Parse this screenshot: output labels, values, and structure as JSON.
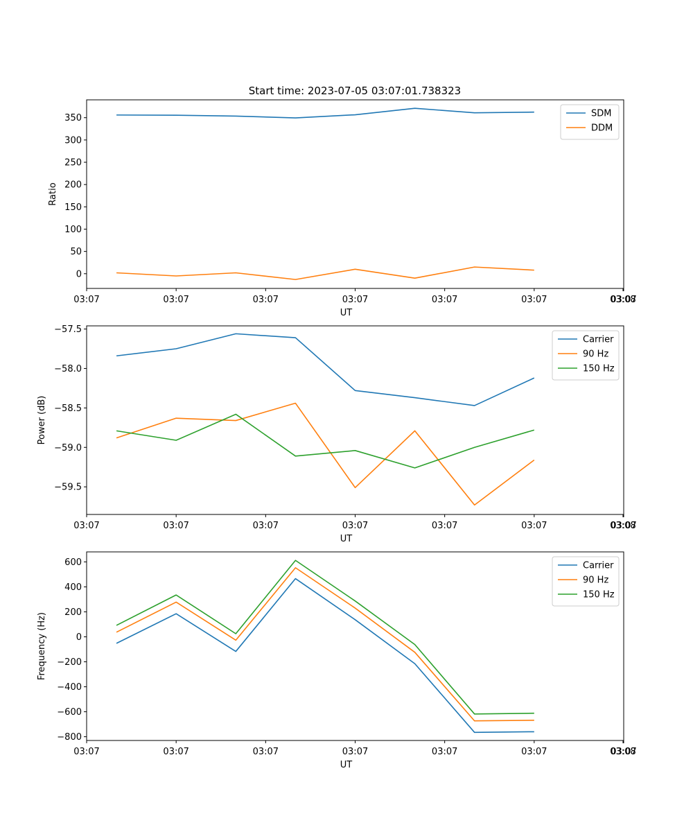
{
  "figure": {
    "title": "Start time: 2023-07-05 03:07:01.738323"
  },
  "chart_data": [
    {
      "type": "line",
      "id": "ratio",
      "title": "Start time: 2023-07-05 03:07:01.738323",
      "xlabel": "UT",
      "ylabel": "Ratio",
      "x_tick_labels": [
        "03:07",
        "03:07",
        "03:07",
        "03:07",
        "03:07",
        "03:07",
        "03:07"
      ],
      "x_tick_label_end": "03:08",
      "x_points": [
        1,
        2,
        3,
        4,
        5,
        6,
        7,
        8
      ],
      "xlim": [
        0.5,
        9.5
      ],
      "ylim": [
        -33,
        390
      ],
      "yticks": [
        0,
        50,
        100,
        150,
        200,
        250,
        300,
        350
      ],
      "ytick_labels": [
        "0",
        "50",
        "100",
        "150",
        "200",
        "250",
        "300",
        "350"
      ],
      "legend_position": "top-right",
      "series": [
        {
          "name": "SDM",
          "color": "#1f77b4",
          "values": [
            356,
            355.5,
            353.5,
            349.5,
            356.5,
            371,
            361,
            362.5
          ]
        },
        {
          "name": "DDM",
          "color": "#ff7f0e",
          "values": [
            2,
            -5,
            2,
            -13,
            10,
            -10,
            15,
            8
          ]
        }
      ]
    },
    {
      "type": "line",
      "id": "power",
      "title": "",
      "xlabel": "UT",
      "ylabel": "Power (dB)",
      "x_tick_labels": [
        "03:07",
        "03:07",
        "03:07",
        "03:07",
        "03:07",
        "03:07",
        "03:07"
      ],
      "x_tick_label_end": "03:08",
      "x_points": [
        1,
        2,
        3,
        4,
        5,
        6,
        7,
        8
      ],
      "xlim": [
        0.5,
        9.5
      ],
      "ylim": [
        -59.85,
        -57.46
      ],
      "yticks": [
        -59.5,
        -59.0,
        -58.5,
        -58.0,
        -57.5
      ],
      "ytick_labels": [
        "−59.5",
        "−59.0",
        "−58.5",
        "−58.0",
        "−57.5"
      ],
      "legend_position": "top-right",
      "series": [
        {
          "name": "Carrier",
          "color": "#1f77b4",
          "values": [
            -57.84,
            -57.75,
            -57.56,
            -57.61,
            -58.28,
            -58.37,
            -58.47,
            -58.12
          ]
        },
        {
          "name": "90 Hz",
          "color": "#ff7f0e",
          "values": [
            -58.88,
            -58.63,
            -58.66,
            -58.44,
            -59.51,
            -58.79,
            -59.73,
            -59.16
          ]
        },
        {
          "name": "150 Hz",
          "color": "#2ca02c",
          "values": [
            -58.79,
            -58.91,
            -58.58,
            -59.11,
            -59.04,
            -59.26,
            -59.0,
            -58.78
          ]
        }
      ]
    },
    {
      "type": "line",
      "id": "frequency",
      "title": "",
      "xlabel": "UT",
      "ylabel": "Frequency (Hz)",
      "x_tick_labels": [
        "03:07",
        "03:07",
        "03:07",
        "03:07",
        "03:07",
        "03:07",
        "03:07"
      ],
      "x_tick_label_end": "03:08",
      "x_points": [
        1,
        2,
        3,
        4,
        5,
        6,
        7,
        8
      ],
      "xlim": [
        0.5,
        9.5
      ],
      "ylim": [
        -830,
        680
      ],
      "yticks": [
        -800,
        -600,
        -400,
        -200,
        0,
        200,
        400,
        600
      ],
      "ytick_labels": [
        "−800",
        "−600",
        "−400",
        "−200",
        "0",
        "200",
        "400",
        "600"
      ],
      "legend_position": "top-right",
      "series": [
        {
          "name": "Carrier",
          "color": "#1f77b4",
          "values": [
            -52,
            185,
            -117,
            466,
            137,
            -215,
            -765,
            -760
          ]
        },
        {
          "name": "90 Hz",
          "color": "#ff7f0e",
          "values": [
            37,
            278,
            -27,
            553,
            230,
            -124,
            -673,
            -668
          ]
        },
        {
          "name": "150 Hz",
          "color": "#2ca02c",
          "values": [
            92,
            335,
            25,
            612,
            287,
            -62,
            -618,
            -612
          ]
        }
      ]
    }
  ]
}
